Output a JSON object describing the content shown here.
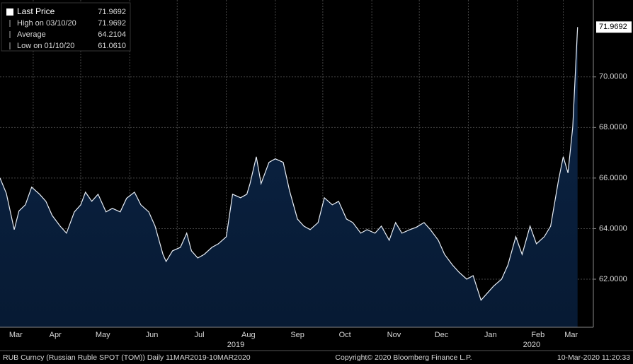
{
  "chart_data": {
    "type": "area",
    "legend": [
      {
        "label": "Last Price",
        "value": "71.9692"
      },
      {
        "label": "High on 03/10/20",
        "value": "71.9692"
      },
      {
        "label": "Average",
        "value": "64.2104"
      },
      {
        "label": "Low on 01/10/20",
        "value": "61.0610"
      }
    ],
    "x": [
      0,
      4,
      9,
      12,
      16,
      20,
      25,
      29,
      33,
      38,
      42,
      47,
      51,
      54,
      58,
      62,
      67,
      71,
      76,
      80,
      85,
      89,
      94,
      98,
      103,
      105,
      109,
      114,
      118,
      121,
      125,
      129,
      134,
      138,
      143,
      147,
      152,
      156,
      158,
      162,
      165,
      170,
      174,
      179,
      183,
      188,
      192,
      196,
      201,
      205,
      210,
      214,
      219,
      223,
      228,
      232,
      237,
      241,
      246,
      250,
      254,
      259,
      263,
      268,
      272,
      277,
      281,
      286,
      290,
      295,
      299,
      304,
      308,
      312,
      317,
      321,
      326,
      330,
      335,
      339,
      344,
      348,
      353,
      356,
      359,
      362,
      365
    ],
    "values": [
      66.0,
      65.4,
      63.96,
      64.7,
      64.94,
      65.64,
      65.36,
      65.08,
      64.52,
      64.1,
      63.82,
      64.66,
      64.94,
      65.44,
      65.08,
      65.36,
      64.66,
      64.8,
      64.66,
      65.2,
      65.44,
      64.94,
      64.66,
      64.1,
      62.98,
      62.7,
      63.12,
      63.26,
      63.82,
      63.12,
      62.84,
      62.98,
      63.26,
      63.4,
      63.68,
      65.36,
      65.22,
      65.36,
      65.78,
      66.84,
      65.78,
      66.62,
      66.76,
      66.62,
      65.5,
      64.38,
      64.1,
      63.96,
      64.24,
      65.22,
      64.94,
      65.08,
      64.38,
      64.24,
      63.82,
      63.96,
      63.82,
      64.1,
      63.54,
      64.24,
      63.82,
      63.96,
      64.05,
      64.24,
      63.96,
      63.54,
      62.98,
      62.56,
      62.28,
      62.0,
      62.14,
      61.17,
      61.45,
      61.73,
      62.0,
      62.56,
      63.68,
      62.98,
      64.1,
      63.4,
      63.68,
      64.1,
      65.92,
      66.84,
      66.2,
      68.02,
      71.9692
    ],
    "xlim": [
      0,
      375
    ],
    "ylim": [
      60.1,
      73.04
    ],
    "yticks": [
      {
        "value": 62,
        "label": "62.0000"
      },
      {
        "value": 64,
        "label": "64.0000"
      },
      {
        "value": 66,
        "label": "66.0000"
      },
      {
        "value": 68,
        "label": "68.0000"
      },
      {
        "value": 70,
        "label": "70.0000"
      }
    ],
    "xticks": [
      {
        "value": 10,
        "label": "Mar"
      },
      {
        "value": 35,
        "label": "Apr"
      },
      {
        "value": 65,
        "label": "May"
      },
      {
        "value": 96,
        "label": "Jun"
      },
      {
        "value": 126,
        "label": "Jul"
      },
      {
        "value": 157,
        "label": "Aug"
      },
      {
        "value": 188,
        "label": "Sep"
      },
      {
        "value": 218,
        "label": "Oct"
      },
      {
        "value": 249,
        "label": "Nov"
      },
      {
        "value": 279,
        "label": "Dec"
      },
      {
        "value": 310,
        "label": "Jan"
      },
      {
        "value": 340,
        "label": "Feb"
      },
      {
        "value": 361,
        "label": "Mar"
      }
    ],
    "year_ticks": [
      {
        "value": 149,
        "label": "2019"
      },
      {
        "value": 336,
        "label": "2020"
      }
    ],
    "xgrid": [
      21,
      51,
      82,
      112,
      143,
      174,
      204,
      235,
      265,
      296,
      327,
      356
    ],
    "grid": true,
    "line_color": "#e8eef6",
    "fill_color": "#0c2547",
    "footer": {
      "left": "RUB Curncy (Russian Ruble SPOT (TOM))  Daily 11MAR2019-10MAR2020",
      "center": "Copyright© 2020 Bloomberg Finance L.P.",
      "right": "10-Mar-2020 11:20:33"
    }
  }
}
